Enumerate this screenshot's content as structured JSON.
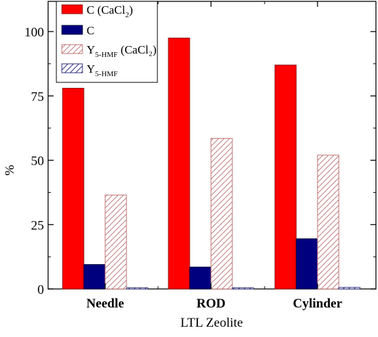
{
  "chart_data": {
    "type": "bar",
    "categories": [
      "Needle",
      "ROD",
      "Cylinder"
    ],
    "series": [
      {
        "name": "C (CaCl2)",
        "values": [
          78,
          97.5,
          87
        ],
        "fill": "#ff0000",
        "stroke": "#8b1a1a",
        "pattern": "solid"
      },
      {
        "name": "C",
        "values": [
          9.5,
          8.5,
          19.5
        ],
        "fill": "#00007f",
        "stroke": "#000033",
        "pattern": "solid"
      },
      {
        "name": "Y5-HMF (CaCl2)",
        "values": [
          36.5,
          58.5,
          52
        ],
        "fill": "#ffffff",
        "stroke": "#c07070",
        "pattern": "hatch-pink"
      },
      {
        "name": "Y5-HMF",
        "values": [
          0.5,
          0.5,
          0.6
        ],
        "fill": "#ffffff",
        "stroke": "#303080",
        "pattern": "hatch-blue"
      }
    ],
    "yticks": [
      "0",
      "25",
      "50",
      "75",
      "100"
    ],
    "ylim": [
      0,
      100
    ],
    "xlabel": "LTL Zeolite",
    "ylabel": "%",
    "legend_position": "top-left",
    "legend": [
      {
        "main": "C (CaCl",
        "sub": "2",
        "tail": ")"
      },
      {
        "main": "C",
        "sub": "",
        "tail": ""
      },
      {
        "main": "Y",
        "sub": "5-HMF",
        "tail": " (CaCl₂)"
      },
      {
        "main": "Y",
        "sub": "5-HMF",
        "tail": ""
      }
    ]
  }
}
